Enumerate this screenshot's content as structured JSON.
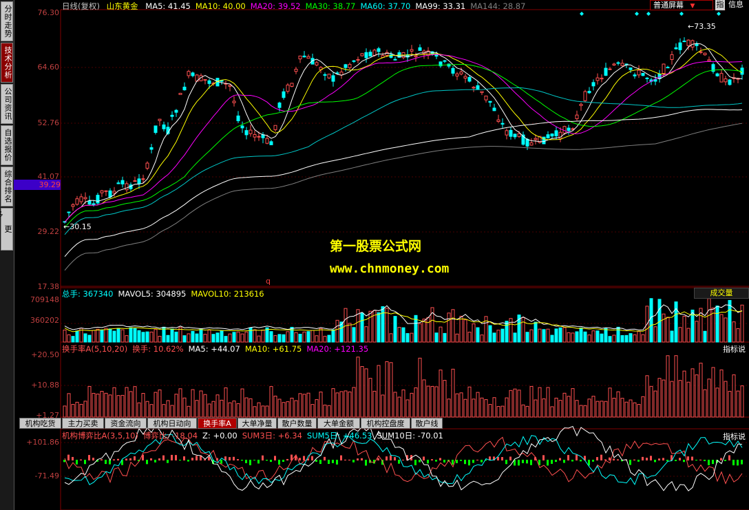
{
  "sidebar": {
    "tabs": [
      {
        "label": "分时走势",
        "active": false
      },
      {
        "label": "技术分析",
        "active": true
      },
      {
        "label": "公司资讯",
        "active": false
      },
      {
        "label": "自选报价",
        "active": false
      },
      {
        "label": "综合排名",
        "active": false
      },
      {
        "label": "更多...",
        "active": false
      }
    ]
  },
  "header": {
    "period": "日线(复权)",
    "stock_name": "山东黄金",
    "ma": [
      {
        "label": "MA5: 41.45",
        "color": "#ffffff"
      },
      {
        "label": "MA10: 40.00",
        "color": "#ffff00"
      },
      {
        "label": "MA20: 39.52",
        "color": "#ff00ff"
      },
      {
        "label": "MA30: 38.77",
        "color": "#00ff00"
      },
      {
        "label": "MA60: 37.70",
        "color": "#00ffff"
      },
      {
        "label": "MA99: 33.31",
        "color": "#ffffff"
      },
      {
        "label": "MA144: 28.87",
        "color": "#808080"
      }
    ],
    "screen_mode": "普通屏幕",
    "index_btn": "指",
    "info_btn": "信息"
  },
  "price_axis": {
    "labels": [
      "76.30",
      "64.60",
      "52.76",
      "41.07",
      "29.22",
      "17.38"
    ],
    "current": "39.29",
    "high_marker": "73.35",
    "low_marker": "30.15",
    "q_marker": "q"
  },
  "volume": {
    "header": [
      {
        "label": "总手: 367340",
        "color": "#00ffff"
      },
      {
        "label": "MAVOL5: 304895",
        "color": "#ffffff"
      },
      {
        "label": "MAVOL10: 213616",
        "color": "#ffff00"
      }
    ],
    "axis": [
      "709148",
      "360202"
    ],
    "tag": "成交量"
  },
  "turnover": {
    "header": [
      {
        "label": "换手率A(5,10,20)",
        "color": "#ff5050"
      },
      {
        "label": "换手: 10.62%",
        "color": "#ff5050"
      },
      {
        "label": "MA5: +44.07",
        "color": "#ffffff"
      },
      {
        "label": "MA10: +61.75",
        "color": "#ffff00"
      },
      {
        "label": "MA20: +121.35",
        "color": "#ff00ff"
      }
    ],
    "axis": [
      "+20.50",
      "+10.88",
      "+1.27"
    ],
    "tag": "指标说"
  },
  "bottom_tabs": [
    {
      "label": "机构吃货",
      "active": false
    },
    {
      "label": "主力买卖",
      "active": false
    },
    {
      "label": "资金流向",
      "active": false
    },
    {
      "label": "机构日动向",
      "active": false
    },
    {
      "label": "换手率A",
      "active": true
    },
    {
      "label": "大单净量",
      "active": false
    },
    {
      "label": "散户数量",
      "active": false
    },
    {
      "label": "大单金额",
      "active": false
    },
    {
      "label": "机构控盘度",
      "active": false
    },
    {
      "label": "散户线",
      "active": false
    }
  ],
  "game": {
    "header": [
      {
        "label": "机构博弈比A(3,5,10)",
        "color": "#ff5050"
      },
      {
        "label": "博弈比: -18.04",
        "color": "#ff5050"
      },
      {
        "label": "Z: +0.00",
        "color": "#ffffff"
      },
      {
        "label": "SUM3日: +6.34",
        "color": "#ff5050"
      },
      {
        "label": "SUM5日: +46.53",
        "color": "#00ffff"
      },
      {
        "label": "SUM10日: -70.01",
        "color": "#ffffff"
      }
    ],
    "axis": [
      "+101.86",
      "-71.49"
    ],
    "tag": "指标说"
  },
  "watermark": {
    "title": "第一股票公式网",
    "url": "www.chnmoney.com"
  },
  "colors": {
    "up": "#ff5050",
    "down": "#00ffff",
    "grid": "#800000"
  }
}
